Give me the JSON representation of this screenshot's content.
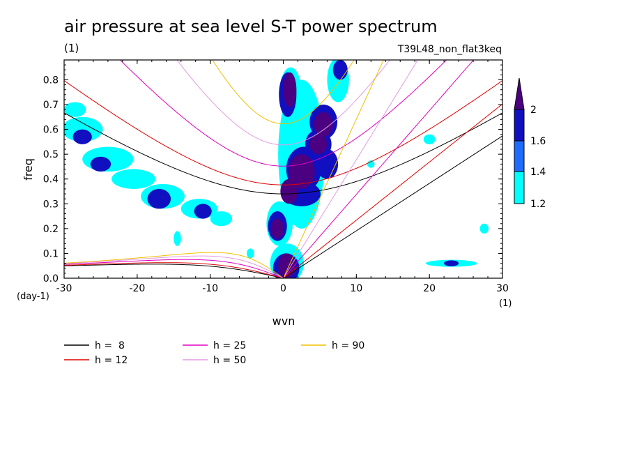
{
  "chart_data": {
    "type": "line",
    "title": "air pressure at sea level S-T power spectrum",
    "subtitle_left": "(1)",
    "subtitle_right": "T39L48_non_flat3keq",
    "xlabel": "wvn",
    "ylabel": "freq",
    "x_unit": "(1)",
    "y_unit": "(day-1)",
    "xlim": [
      -30,
      30
    ],
    "ylim": [
      0,
      0.88
    ],
    "x_ticks": [
      -30,
      -20,
      -10,
      0,
      10,
      20,
      30
    ],
    "x_tick_labels": [
      "-30",
      "-20",
      "-10",
      "0",
      "10",
      "20",
      "30"
    ],
    "y_ticks": [
      0,
      0.1,
      0.2,
      0.3,
      0.4,
      0.5,
      0.6,
      0.7,
      0.8
    ],
    "y_tick_labels": [
      "0.0",
      "0.1",
      "0.2",
      "0.3",
      "0.4",
      "0.5",
      "0.6",
      "0.7",
      "0.8"
    ],
    "colorbar": {
      "levels": [
        1.2,
        1.4,
        1.6,
        2
      ],
      "labels": [
        "1.2",
        "1.4",
        "1.6",
        "2"
      ],
      "colors": [
        "#00ffff",
        "#1e6cff",
        "#1010c0",
        "#4b0082"
      ]
    },
    "series": [
      {
        "name": "h =  8",
        "h": 8,
        "color": "#000000"
      },
      {
        "name": "h = 12",
        "h": 12,
        "color": "#e00000"
      },
      {
        "name": "h = 25",
        "h": 25,
        "color": "#e000c0"
      },
      {
        "name": "h = 50",
        "h": 50,
        "color": "#e29be2"
      },
      {
        "name": "h = 90",
        "h": 90,
        "color": "#f0c000"
      }
    ],
    "power_blobs": [
      {
        "x": 0.9,
        "y": 0.76,
        "rx": 0.9,
        "ry": 0.07,
        "level": 3
      },
      {
        "x": 0.6,
        "y": 0.74,
        "rx": 1.2,
        "ry": 0.09,
        "level": 2
      },
      {
        "x": 2.5,
        "y": 0.43,
        "rx": 1.8,
        "ry": 0.07,
        "level": 3
      },
      {
        "x": 2.8,
        "y": 0.44,
        "rx": 2.4,
        "ry": 0.09,
        "level": 2
      },
      {
        "x": 0.8,
        "y": 0.35,
        "rx": 1.2,
        "ry": 0.05,
        "level": 3
      },
      {
        "x": 2.5,
        "y": 0.34,
        "rx": 2.6,
        "ry": 0.05,
        "level": 2
      },
      {
        "x": 0.5,
        "y": 0.05,
        "rx": 1.2,
        "ry": 0.05,
        "level": 3
      },
      {
        "x": 0.4,
        "y": 0.04,
        "rx": 1.8,
        "ry": 0.06,
        "level": 2
      },
      {
        "x": -0.8,
        "y": 0.2,
        "rx": 0.9,
        "ry": 0.04,
        "level": 3
      },
      {
        "x": -0.8,
        "y": 0.21,
        "rx": 1.3,
        "ry": 0.06,
        "level": 2
      },
      {
        "x": 5.5,
        "y": 0.62,
        "rx": 1.3,
        "ry": 0.05,
        "level": 3
      },
      {
        "x": 5.5,
        "y": 0.63,
        "rx": 1.9,
        "ry": 0.07,
        "level": 2
      },
      {
        "x": 4.8,
        "y": 0.54,
        "rx": 1.2,
        "ry": 0.04,
        "level": 3
      },
      {
        "x": 4.8,
        "y": 0.54,
        "rx": 1.8,
        "ry": 0.06,
        "level": 2
      },
      {
        "x": 6.0,
        "y": 0.46,
        "rx": 1.5,
        "ry": 0.06,
        "level": 2
      },
      {
        "x": 7.8,
        "y": 0.84,
        "rx": 1.0,
        "ry": 0.04,
        "level": 2
      },
      {
        "x": -27.5,
        "y": 0.57,
        "rx": 1.3,
        "ry": 0.03,
        "level": 2
      },
      {
        "x": -25.0,
        "y": 0.46,
        "rx": 1.4,
        "ry": 0.03,
        "level": 2
      },
      {
        "x": -17.0,
        "y": 0.32,
        "rx": 1.6,
        "ry": 0.04,
        "level": 2
      },
      {
        "x": -11.0,
        "y": 0.27,
        "rx": 1.2,
        "ry": 0.03,
        "level": 2
      },
      {
        "x": 23.0,
        "y": 0.06,
        "rx": 1.0,
        "ry": 0.012,
        "level": 2
      }
    ],
    "cyan_patches": [
      {
        "x": -27.5,
        "y": 0.6,
        "rx": 2.8,
        "ry": 0.05
      },
      {
        "x": -24.0,
        "y": 0.48,
        "rx": 3.5,
        "ry": 0.05
      },
      {
        "x": -20.5,
        "y": 0.4,
        "rx": 3.0,
        "ry": 0.04
      },
      {
        "x": -16.5,
        "y": 0.33,
        "rx": 3.0,
        "ry": 0.05
      },
      {
        "x": -11.5,
        "y": 0.28,
        "rx": 2.5,
        "ry": 0.04
      },
      {
        "x": -8.5,
        "y": 0.24,
        "rx": 1.5,
        "ry": 0.03
      },
      {
        "x": -28.5,
        "y": 0.68,
        "rx": 1.5,
        "ry": 0.03
      },
      {
        "x": -0.5,
        "y": 0.22,
        "rx": 1.8,
        "ry": 0.09
      },
      {
        "x": 2.5,
        "y": 0.5,
        "rx": 3.2,
        "ry": 0.3
      },
      {
        "x": 1.0,
        "y": 0.75,
        "rx": 1.5,
        "ry": 0.1
      },
      {
        "x": 7.5,
        "y": 0.8,
        "rx": 1.5,
        "ry": 0.09
      },
      {
        "x": 0.5,
        "y": 0.06,
        "rx": 2.3,
        "ry": 0.08
      },
      {
        "x": 23.0,
        "y": 0.06,
        "rx": 3.5,
        "ry": 0.014
      },
      {
        "x": 20.0,
        "y": 0.56,
        "rx": 0.8,
        "ry": 0.02
      },
      {
        "x": 27.5,
        "y": 0.2,
        "rx": 0.6,
        "ry": 0.02
      },
      {
        "x": 12.0,
        "y": 0.46,
        "rx": 0.5,
        "ry": 0.015
      },
      {
        "x": -14.5,
        "y": 0.16,
        "rx": 0.5,
        "ry": 0.03
      },
      {
        "x": -4.5,
        "y": 0.1,
        "rx": 0.5,
        "ry": 0.02
      }
    ]
  }
}
